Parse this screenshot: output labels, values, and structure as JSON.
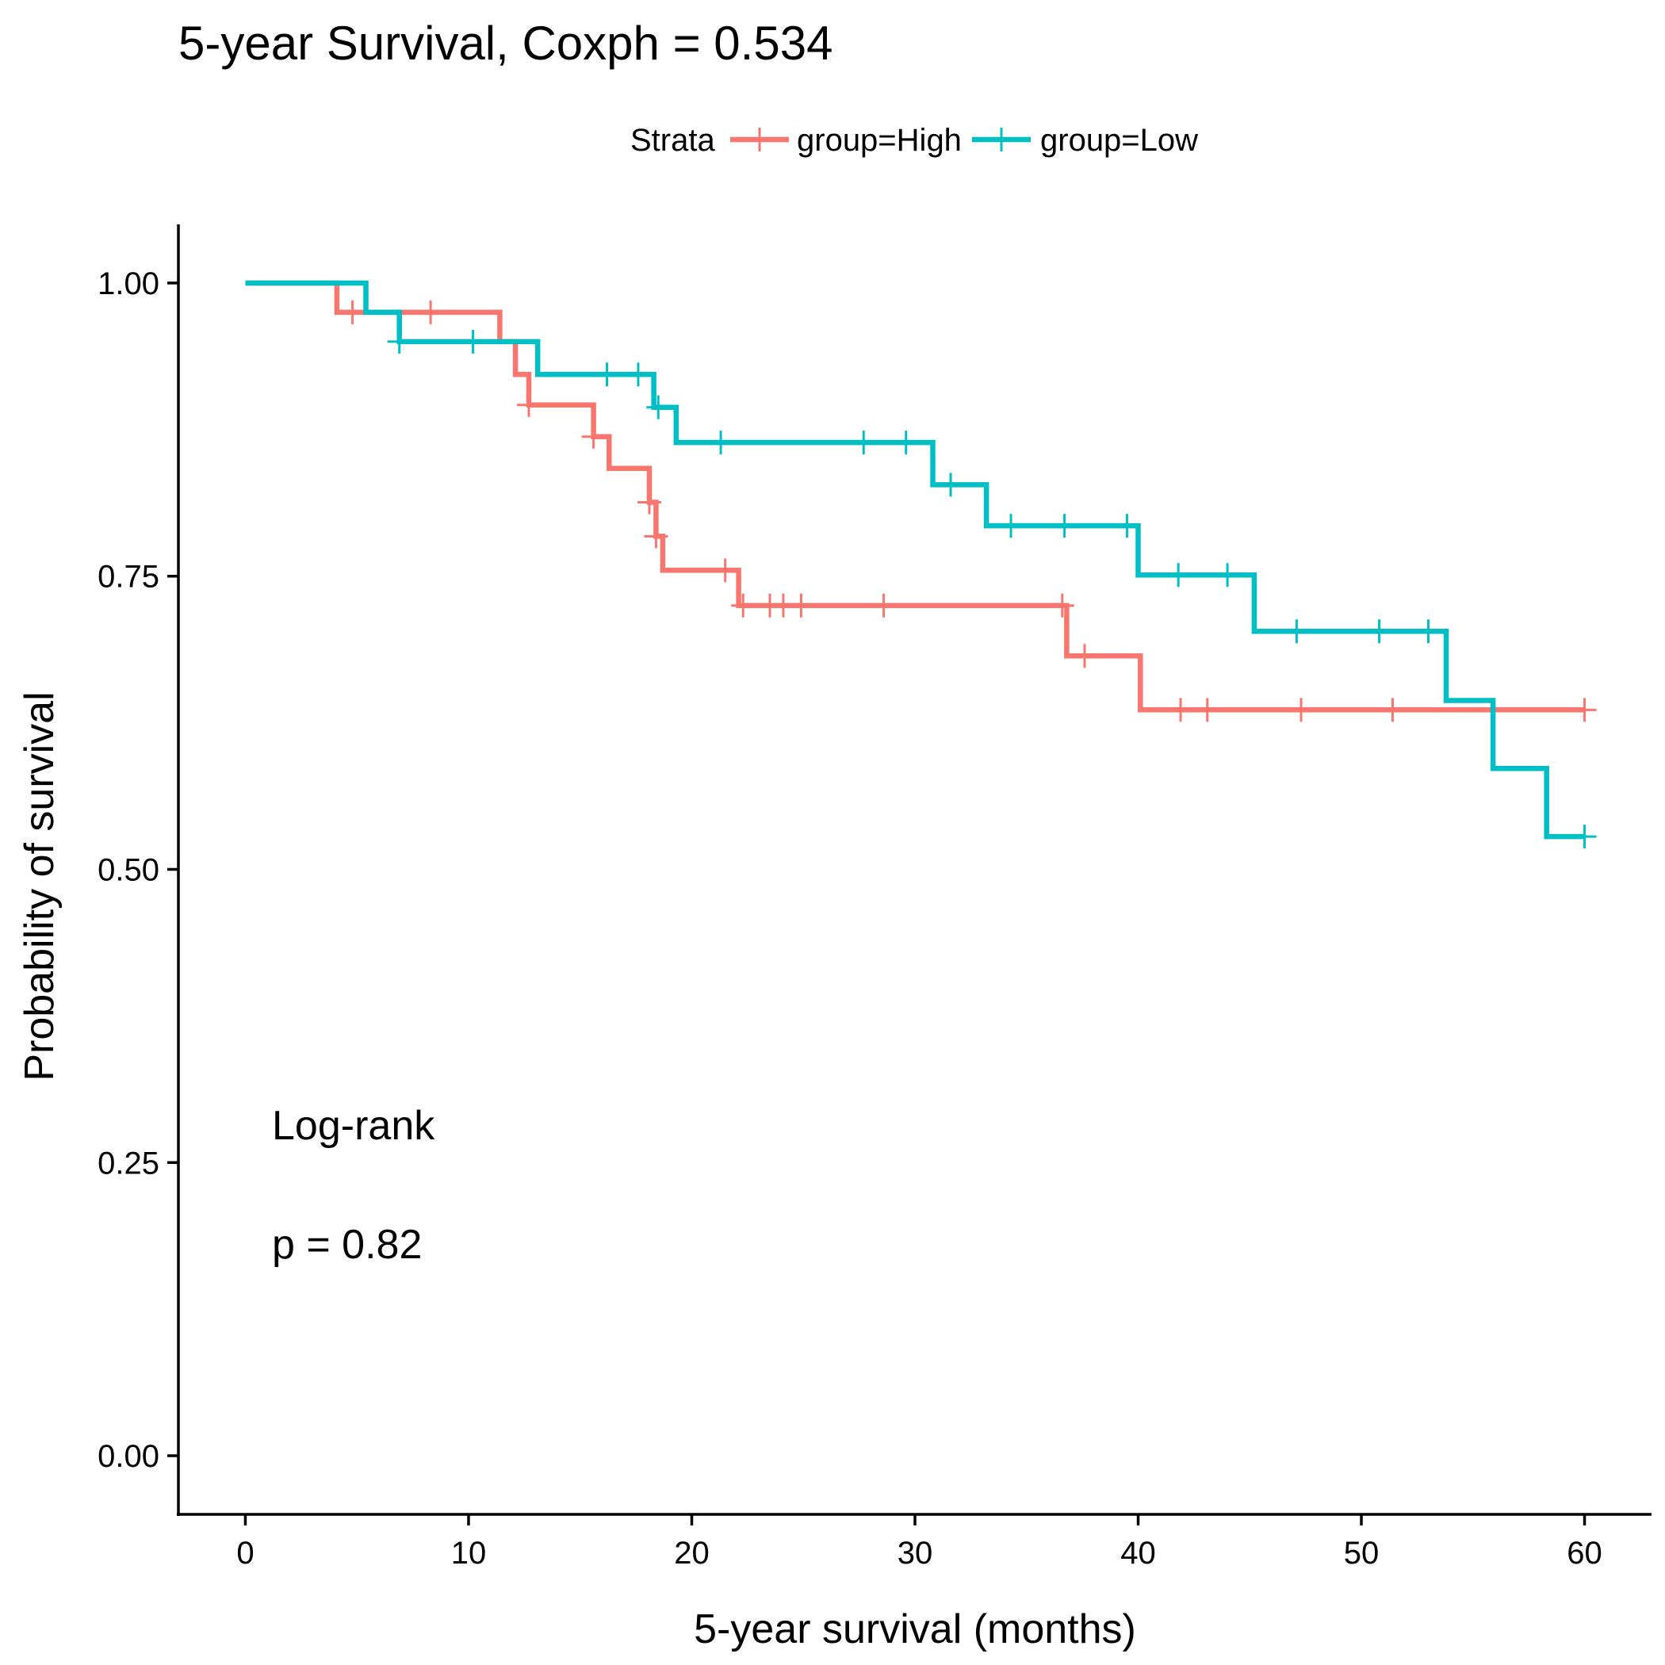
{
  "chart_data": {
    "type": "line",
    "subtype": "kaplan-meier step curve",
    "title": "5-year Survival, Coxph = 0.534",
    "xlabel": "5-year survival (months)",
    "ylabel": "Probability of survival",
    "xlim": [
      -3,
      63
    ],
    "ylim": [
      -0.05,
      1.05
    ],
    "x_ticks": [
      0,
      10,
      20,
      30,
      40,
      50,
      60
    ],
    "x_tick_labels": [
      "0",
      "10",
      "20",
      "30",
      "40",
      "50",
      "60"
    ],
    "y_ticks": [
      0,
      0.25,
      0.5,
      0.75,
      1.0
    ],
    "y_tick_labels": [
      "0.00",
      "0.25",
      "0.50",
      "0.75",
      "1.00"
    ],
    "grid": false,
    "legend": {
      "title": "Strata",
      "position": "top",
      "entries": [
        "group=High",
        "group=Low"
      ]
    },
    "annotations": {
      "test_name": "Log-rank",
      "p_value_text": "p = 0.82"
    },
    "series": [
      {
        "name": "group=High",
        "color": "#F8766D",
        "steps": [
          [
            0,
            1.0
          ],
          [
            4.1,
            0.975
          ],
          [
            11.4,
            0.95
          ],
          [
            12.1,
            0.922
          ],
          [
            12.7,
            0.896
          ],
          [
            15.6,
            0.869
          ],
          [
            16.3,
            0.842
          ],
          [
            18.1,
            0.813
          ],
          [
            18.4,
            0.784
          ],
          [
            18.7,
            0.755
          ],
          [
            22.1,
            0.725
          ],
          [
            36.8,
            0.682
          ],
          [
            40.1,
            0.636
          ],
          [
            60,
            0.636
          ]
        ],
        "censor_x": [
          4.8,
          8.3,
          12.7,
          15.6,
          18.1,
          18.4,
          21.5,
          22.3,
          23.5,
          24.1,
          24.9,
          28.6,
          36.6,
          37.6,
          41.9,
          43.1,
          47.3,
          51.4,
          60
        ]
      },
      {
        "name": "group=Low",
        "color": "#00BFC4",
        "steps": [
          [
            0,
            1.0
          ],
          [
            5.4,
            0.975
          ],
          [
            6.9,
            0.95
          ],
          [
            13.1,
            0.922
          ],
          [
            18.3,
            0.894
          ],
          [
            19.3,
            0.864
          ],
          [
            30.8,
            0.828
          ],
          [
            33.2,
            0.793
          ],
          [
            40.0,
            0.751
          ],
          [
            45.2,
            0.703
          ],
          [
            53.8,
            0.644
          ],
          [
            55.9,
            0.586
          ],
          [
            58.3,
            0.528
          ],
          [
            60,
            0.528
          ]
        ],
        "censor_x": [
          6.9,
          10.2,
          16.2,
          17.6,
          18.5,
          21.3,
          27.7,
          29.6,
          31.6,
          34.3,
          36.7,
          39.5,
          41.8,
          44.0,
          47.1,
          50.8,
          53.0,
          60
        ]
      }
    ]
  }
}
